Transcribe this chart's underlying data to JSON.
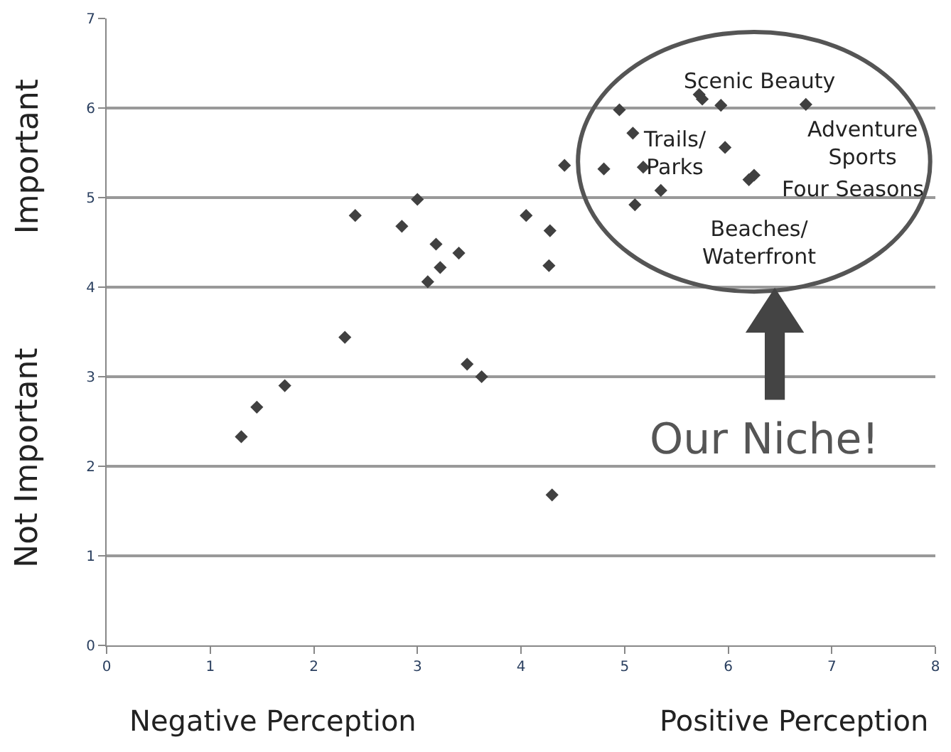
{
  "chart_data": {
    "type": "scatter",
    "marker": "diamond",
    "grid": "y",
    "legend": false,
    "x": [
      1.3,
      1.45,
      1.72,
      2.3,
      2.4,
      2.85,
      3.0,
      3.1,
      3.18,
      3.22,
      3.4,
      3.48,
      3.62,
      4.05,
      4.28,
      4.27,
      4.3,
      4.42,
      4.8,
      4.95,
      5.08,
      5.1,
      5.18,
      5.35,
      5.72,
      5.75,
      5.93,
      5.97,
      6.2,
      6.25,
      6.75
    ],
    "series": [
      {
        "color": "#404040",
        "values": [
          2.33,
          2.66,
          2.9,
          3.44,
          4.8,
          4.68,
          4.98,
          4.06,
          4.48,
          4.22,
          4.38,
          3.14,
          3.0,
          4.8,
          4.63,
          4.24,
          1.68,
          5.36,
          5.32,
          5.98,
          5.72,
          4.92,
          5.34,
          5.08,
          6.15,
          6.1,
          6.03,
          5.56,
          5.2,
          5.25,
          6.04
        ]
      }
    ],
    "xlim": [
      0,
      8
    ],
    "xticks": [
      0,
      1,
      2,
      3,
      4,
      5,
      6,
      7,
      8
    ],
    "ylim": [
      0,
      7
    ],
    "yticks": [
      0,
      1,
      2,
      3,
      4,
      5,
      6,
      7
    ],
    "annotations": [
      "Scenic Beauty",
      "Trails/\nParks",
      "Adventure\nSports",
      "Four Seasons",
      "Beaches/\nWaterfront",
      "Our Niche!",
      "Important",
      "Not Important",
      "Negative Perception",
      "Positive Perception"
    ]
  }
}
